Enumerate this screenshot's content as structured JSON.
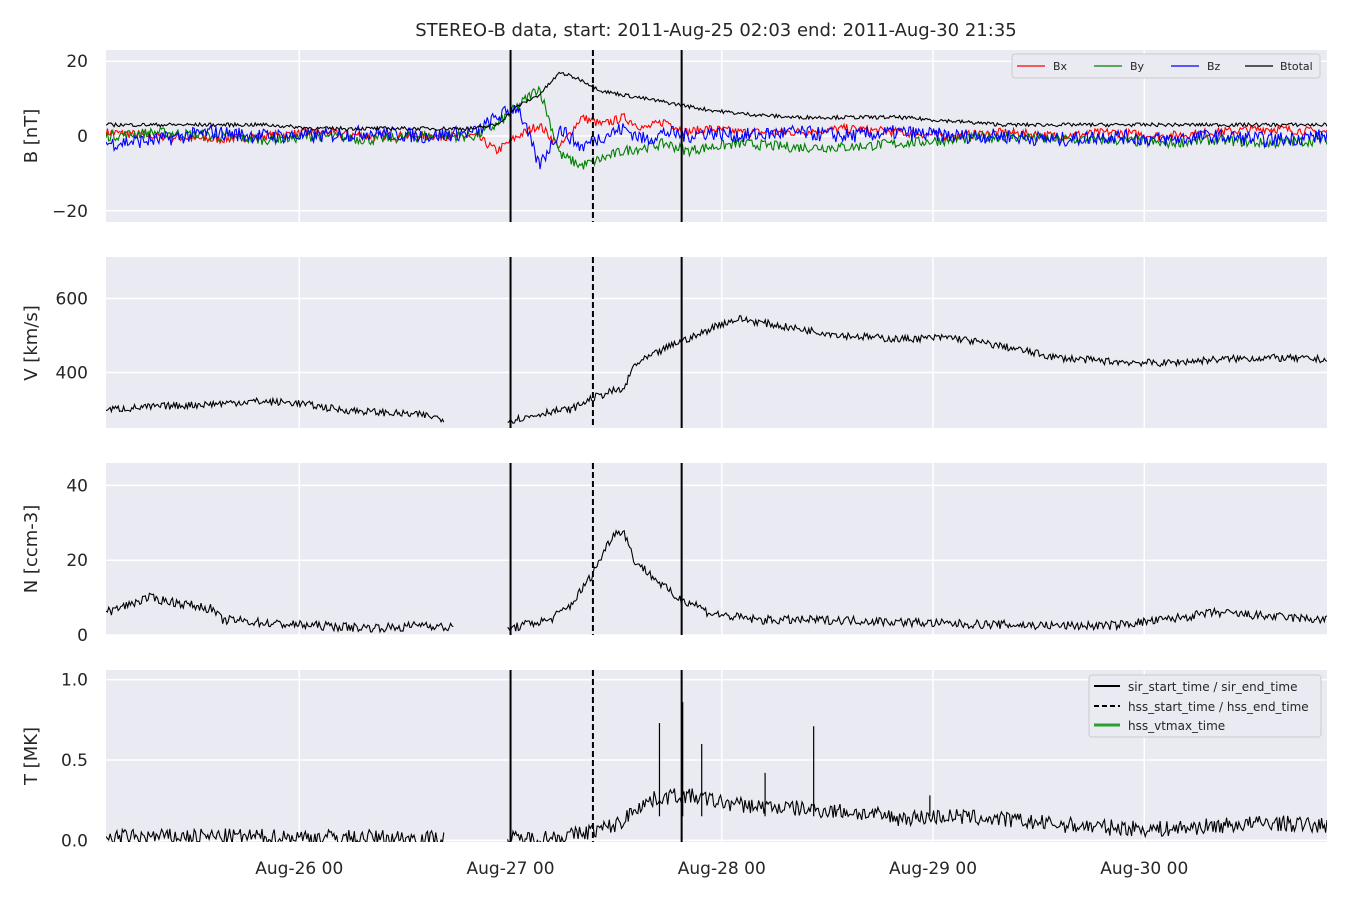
{
  "title": "STEREO-B data, start: 2011-Aug-25 02:03  end: 2011-Aug-30 21:35",
  "x_ticks": [
    "Aug-26 00",
    "Aug-27 00",
    "Aug-28 00",
    "Aug-29 00",
    "Aug-30 00"
  ],
  "colors": {
    "background": "#eaeaf2",
    "grid": "#ffffff",
    "bx": "#ff0000",
    "by": "#008000",
    "bz": "#0000ff",
    "btotal": "#000000",
    "hss_vtmax": "#2ca02c"
  },
  "legend_b": [
    "Bx",
    "By",
    "Bz",
    "Btotal"
  ],
  "legend_events": [
    "sir_start_time / sir_end_time",
    "hss_start_time / hss_end_time",
    "hss_vtmax_time"
  ],
  "chart_data": [
    {
      "type": "line",
      "ylabel": "B [nT]",
      "ylim": [
        -23,
        23
      ],
      "yticks": [
        20,
        0,
        -20
      ],
      "ytick_labels": [
        "20",
        "0",
        "−20"
      ],
      "series": [
        {
          "name": "Bx",
          "color": "#ff0000",
          "x": [
            0,
            0.25,
            0.5,
            0.75,
            1.0,
            1.25,
            1.5,
            1.75,
            1.85,
            1.95,
            2.05,
            2.15,
            2.25,
            2.35,
            2.45,
            2.55,
            2.65,
            2.75,
            2.85,
            3.0,
            3.25,
            3.5,
            3.75,
            4.0,
            4.25,
            4.5,
            4.75,
            5.0,
            5.25,
            5.5,
            5.78
          ],
          "y": [
            1,
            0,
            -1,
            0,
            1,
            0,
            0,
            0,
            -4,
            0,
            3,
            -3,
            5,
            3,
            5,
            2,
            4,
            1,
            2,
            1,
            1,
            2,
            1,
            0,
            1,
            0,
            1,
            0,
            1,
            2,
            1
          ],
          "noise": 1.2
        },
        {
          "name": "By",
          "color": "#008000",
          "x": [
            0,
            0.25,
            0.5,
            0.75,
            1.0,
            1.25,
            1.5,
            1.75,
            1.85,
            1.95,
            2.05,
            2.15,
            2.25,
            2.35,
            2.45,
            2.55,
            2.65,
            2.75,
            2.85,
            3.0,
            3.25,
            3.5,
            3.75,
            4.0,
            4.25,
            4.5,
            4.75,
            5.0,
            5.25,
            5.5,
            5.78
          ],
          "y": [
            0,
            1,
            0,
            -1,
            0,
            -1,
            0,
            0,
            3,
            8,
            13,
            -5,
            -8,
            -6,
            -4,
            -3,
            -2,
            -4,
            -3,
            -2,
            -3,
            -3,
            -2,
            -1,
            0,
            -1,
            -1,
            -2,
            -1,
            -2,
            -1
          ],
          "noise": 1.4
        },
        {
          "name": "Bz",
          "color": "#0000ff",
          "x": [
            0,
            0.25,
            0.5,
            0.75,
            1.0,
            1.25,
            1.5,
            1.75,
            1.85,
            1.95,
            2.05,
            2.15,
            2.25,
            2.35,
            2.45,
            2.55,
            2.65,
            2.75,
            2.85,
            3.0,
            3.25,
            3.5,
            3.75,
            4.0,
            4.25,
            4.5,
            4.75,
            5.0,
            5.25,
            5.5,
            5.78
          ],
          "y": [
            -2,
            -1,
            1,
            0,
            0,
            1,
            0,
            1,
            5,
            8,
            -8,
            2,
            -3,
            0,
            2,
            -1,
            1,
            0,
            1,
            0,
            1,
            0,
            1,
            0,
            0,
            -1,
            0,
            -1,
            0,
            -1,
            0
          ],
          "noise": 2.0
        },
        {
          "name": "Btotal",
          "color": "#000000",
          "x": [
            0,
            0.25,
            0.5,
            0.75,
            1.0,
            1.25,
            1.5,
            1.75,
            1.85,
            1.95,
            2.05,
            2.15,
            2.25,
            2.35,
            2.45,
            2.55,
            2.65,
            2.75,
            2.85,
            3.0,
            3.25,
            3.5,
            3.75,
            4.0,
            4.25,
            4.5,
            4.75,
            5.0,
            5.25,
            5.5,
            5.78
          ],
          "y": [
            3,
            3,
            3,
            3,
            2,
            2,
            2,
            2,
            3,
            8,
            11,
            17,
            15,
            12,
            11,
            10,
            9,
            8,
            7,
            6,
            5,
            5,
            5,
            4,
            3,
            3,
            3,
            3,
            3,
            3,
            3
          ],
          "noise": 0.5
        }
      ]
    },
    {
      "type": "line",
      "ylabel": "V [km/s]",
      "ylim": [
        250,
        712
      ],
      "yticks": [
        600,
        400
      ],
      "ytick_labels": [
        "600",
        "400"
      ],
      "series": [
        {
          "name": "V",
          "color": "#000000",
          "x": [
            0,
            0.25,
            0.5,
            0.7,
            0.9,
            1.1,
            1.3,
            1.5,
            1.6,
            1.7,
            1.9,
            2.0,
            2.1,
            2.2,
            2.3,
            2.4,
            2.45,
            2.5,
            2.6,
            2.7,
            2.8,
            2.9,
            3.0,
            3.25,
            3.5,
            3.75,
            4.0,
            4.25,
            4.5,
            4.75,
            5.0,
            5.25,
            5.5,
            5.78
          ],
          "y": [
            300,
            308,
            315,
            322,
            318,
            300,
            292,
            285,
            275,
            null,
            270,
            280,
            295,
            300,
            330,
            350,
            352,
            420,
            450,
            480,
            500,
            530,
            545,
            520,
            500,
            490,
            495,
            470,
            440,
            430,
            425,
            435,
            440,
            435
          ],
          "noise": 10
        }
      ]
    },
    {
      "type": "line",
      "ylabel": "N [ccm-3]",
      "ylim": [
        0,
        46
      ],
      "yticks": [
        40,
        20,
        0
      ],
      "ytick_labels": [
        "40",
        "20",
        "0"
      ],
      "series": [
        {
          "name": "N",
          "color": "#000000",
          "x": [
            0,
            0.1,
            0.2,
            0.3,
            0.4,
            0.5,
            0.55,
            0.6,
            0.8,
            1.0,
            1.2,
            1.4,
            1.5,
            1.6,
            1.65,
            1.7,
            1.9,
            2.0,
            2.1,
            2.2,
            2.3,
            2.4,
            2.45,
            2.5,
            2.6,
            2.7,
            2.8,
            2.85,
            2.95,
            3.1,
            3.5,
            4.0,
            4.5,
            4.75,
            5.0,
            5.25,
            5.5,
            5.78
          ],
          "y": [
            6,
            8,
            10,
            9,
            8,
            7,
            4,
            4,
            3,
            2.5,
            2,
            2,
            3,
            2,
            2,
            null,
            1.5,
            3,
            4,
            8,
            16,
            27,
            28,
            20,
            15,
            10,
            8,
            6,
            5,
            4,
            4,
            3,
            2.5,
            2.5,
            4,
            6,
            5,
            4
          ],
          "noise": 1.2
        }
      ]
    },
    {
      "type": "line",
      "ylabel": "T [MK]",
      "ylim": [
        -0.01,
        1.06
      ],
      "yticks": [
        1.0,
        0.5,
        0.0
      ],
      "ytick_labels": [
        "1.0",
        "0.5",
        "0.0"
      ],
      "series": [
        {
          "name": "T",
          "color": "#000000",
          "x": [
            0,
            0.5,
            1.0,
            1.5,
            1.6,
            1.7,
            1.9,
            2.0,
            2.1,
            2.2,
            2.3,
            2.4,
            2.45,
            2.5,
            2.6,
            2.7,
            2.8,
            2.9,
            3.0,
            3.25,
            3.5,
            3.75,
            4.0,
            4.25,
            4.5,
            4.75,
            5.0,
            5.25,
            5.5,
            5.78
          ],
          "y": [
            0.02,
            0.025,
            0.02,
            0.015,
            0.01,
            null,
            0.01,
            0.01,
            0.02,
            0.03,
            0.06,
            0.09,
            0.12,
            0.2,
            0.26,
            0.28,
            0.27,
            0.24,
            0.22,
            0.2,
            0.18,
            0.14,
            0.15,
            0.13,
            0.1,
            0.08,
            0.07,
            0.09,
            0.11,
            0.09
          ],
          "noise": 0.05
        }
      ],
      "spikes": [
        {
          "x": 2.62,
          "y": 0.73
        },
        {
          "x": 2.73,
          "y": 0.86
        },
        {
          "x": 2.82,
          "y": 0.6
        },
        {
          "x": 3.12,
          "y": 0.42
        },
        {
          "x": 3.35,
          "y": 0.71
        },
        {
          "x": 3.9,
          "y": 0.28
        }
      ]
    }
  ],
  "x_domain": [
    0,
    5.78
  ],
  "x_tick_values": [
    0.915,
    1.915,
    2.915,
    3.915,
    4.915
  ],
  "events": {
    "sir_start": 1.915,
    "hss_start": 2.305,
    "sir_end": 2.725
  }
}
